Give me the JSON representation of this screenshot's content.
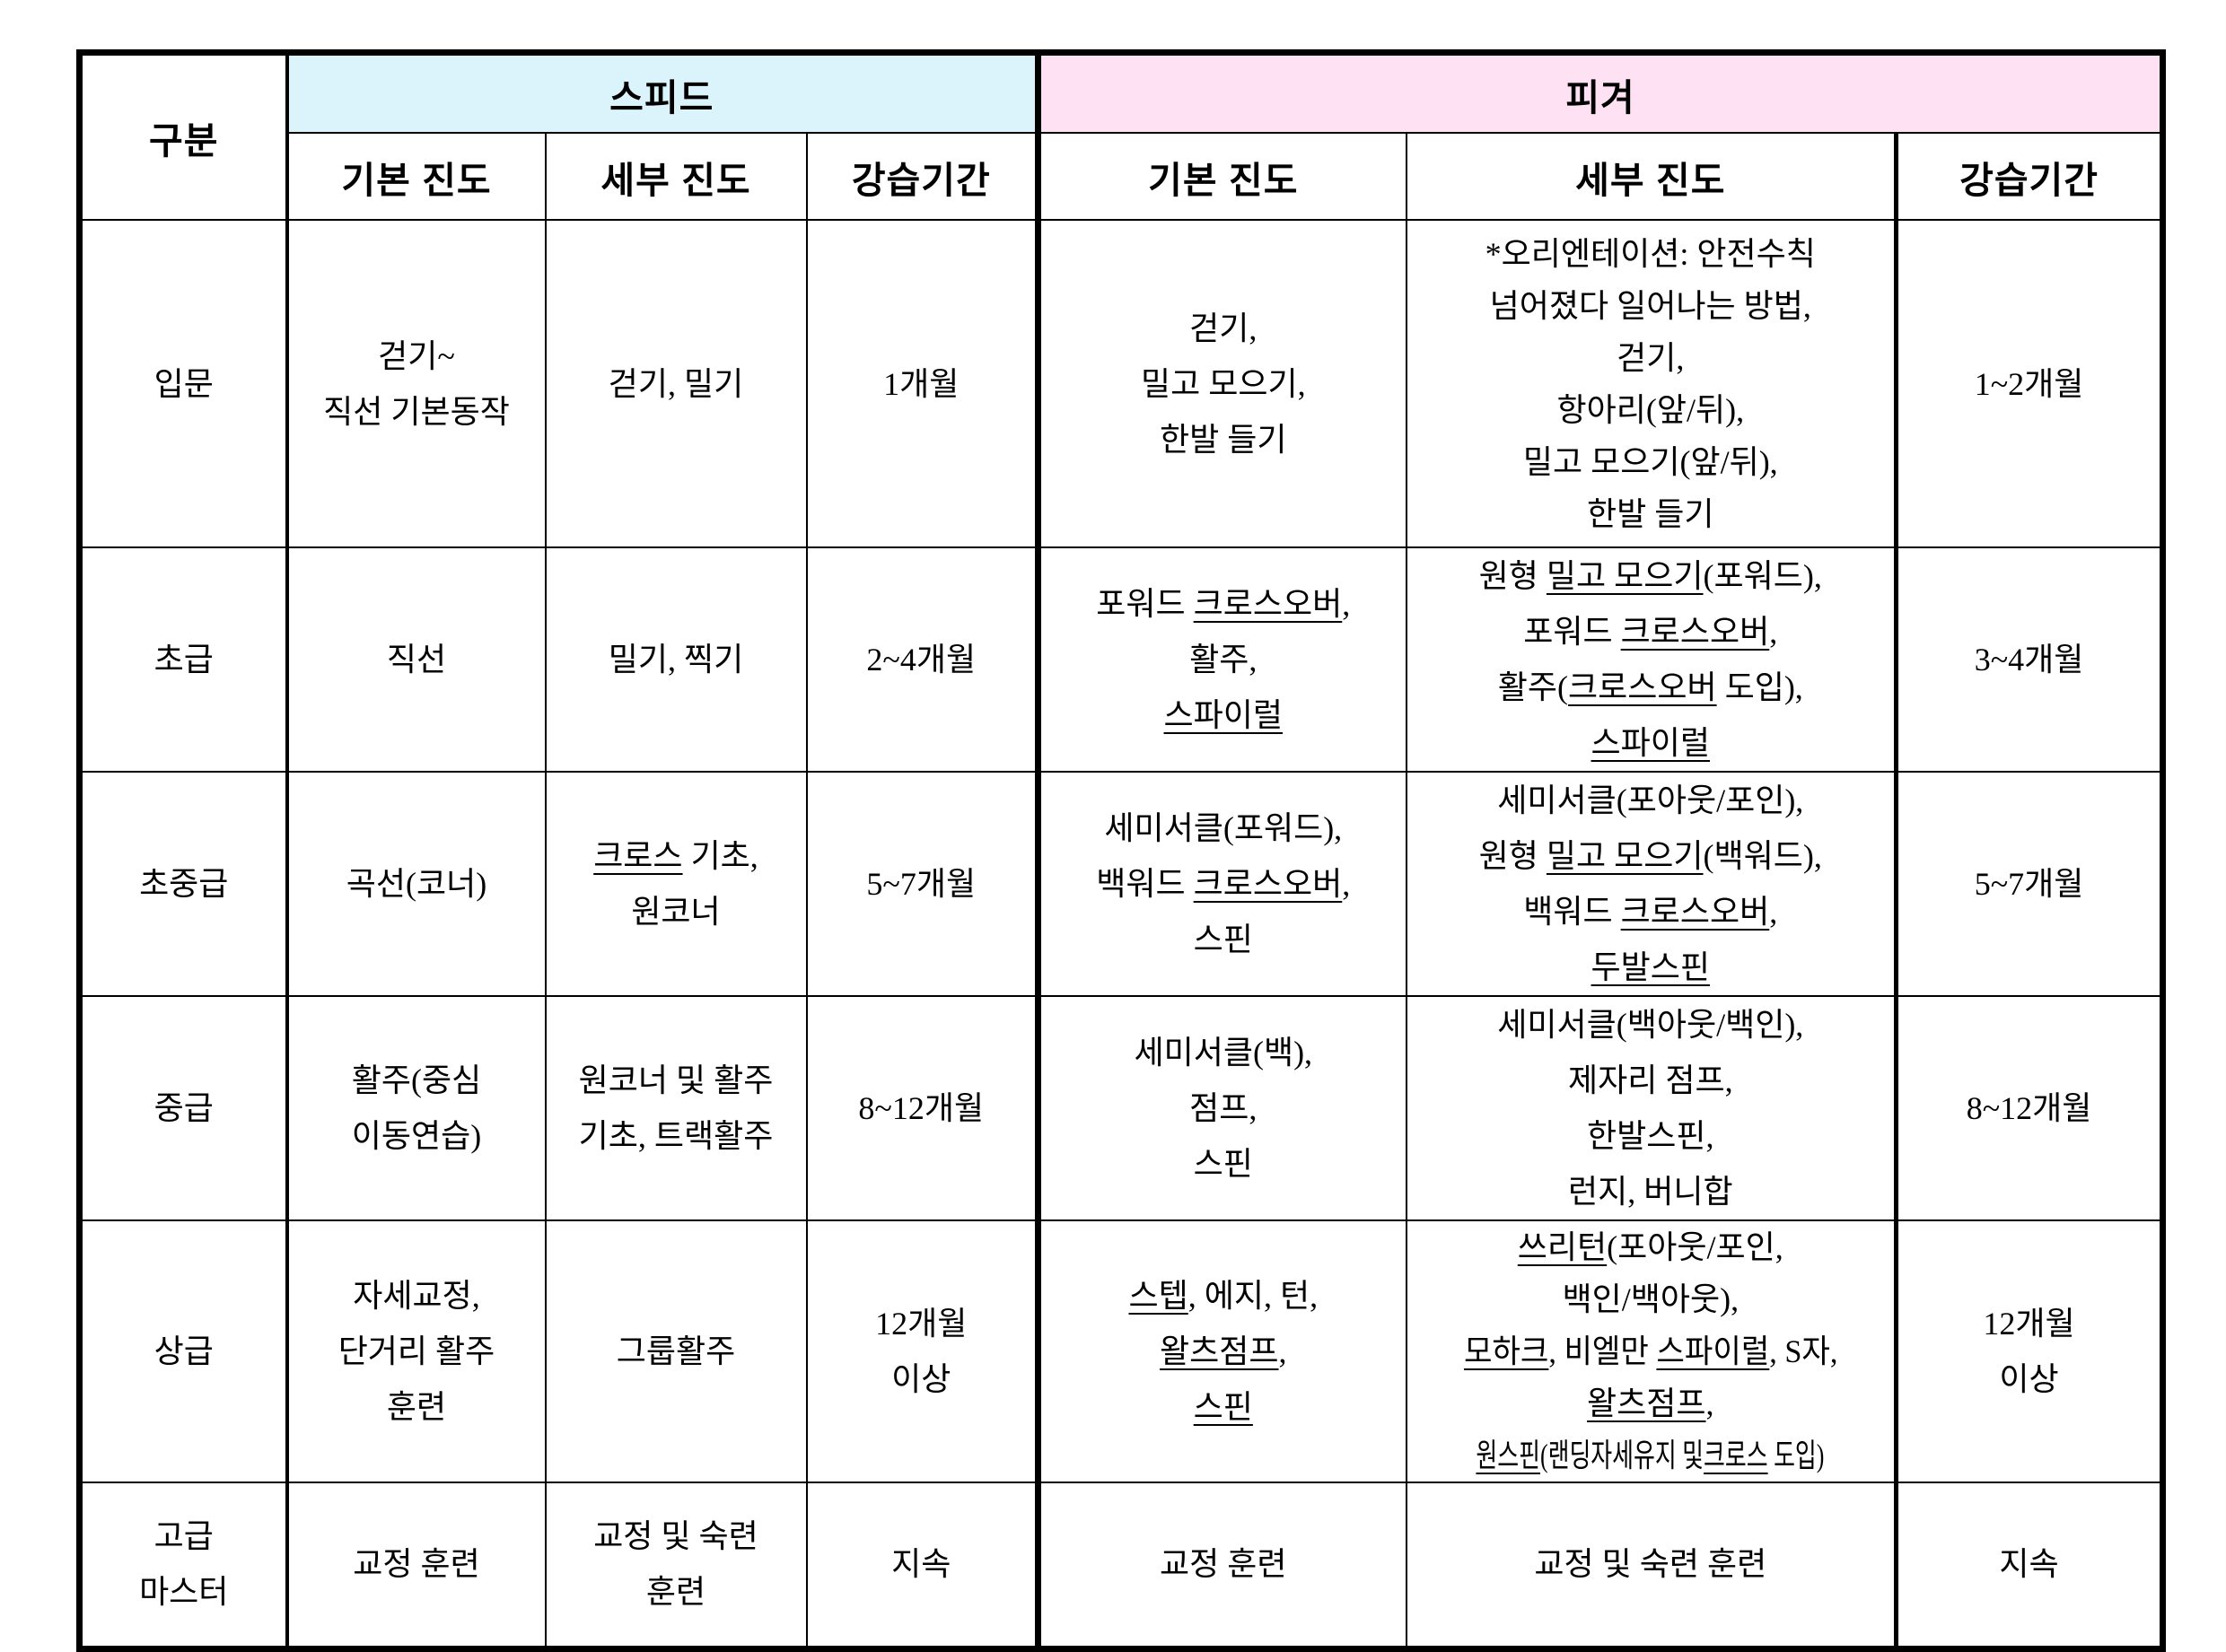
{
  "page": {
    "background": "#ffffff"
  },
  "table": {
    "corner_label": "구분",
    "groups": [
      {
        "id": "speed",
        "label": "스피드",
        "bg": "#dbf3fb",
        "columns": [
          "기본 진도",
          "세부 진도",
          "강습기간"
        ]
      },
      {
        "id": "figure",
        "label": "피겨",
        "bg": "#fee1f2",
        "columns": [
          "기본 진도",
          "세부 진도",
          "강습기간"
        ]
      }
    ],
    "rows": [
      {
        "id": "intro",
        "level": [
          "입문"
        ],
        "speed": {
          "basic": [
            "걷기~",
            "직선 기본동작"
          ],
          "detail": [
            "걷기, 밀기"
          ],
          "period": [
            "1개월"
          ]
        },
        "figure": {
          "basic": [
            "걷기,",
            "밀고 모으기,",
            "한발 들기"
          ],
          "detail": [
            "*오리엔테이션: 안전수칙",
            "넘어졌다 일어나는 방법,",
            "걷기,",
            "항아리(앞/뒤),",
            "밀고 모으기(앞/뒤),",
            "한발 들기"
          ],
          "period": [
            "1~2개월"
          ]
        }
      },
      {
        "id": "beginner",
        "level": [
          "초급"
        ],
        "speed": {
          "basic": [
            "직선"
          ],
          "detail": [
            "밀기, 찍기"
          ],
          "period": [
            "2~4개월"
          ]
        },
        "figure": {
          "basic": [
            {
              "segs": [
                {
                  "t": "포워드 "
                },
                {
                  "t": "크로스오버",
                  "u": true
                },
                {
                  "t": ","
                }
              ]
            },
            "활주,",
            {
              "segs": [
                {
                  "t": "스파이럴",
                  "u": true
                }
              ]
            }
          ],
          "detail": [
            {
              "segs": [
                {
                  "t": "원형 "
                },
                {
                  "t": "밀고 모으기",
                  "u": true
                },
                {
                  "t": "(포워드),"
                }
              ]
            },
            {
              "segs": [
                {
                  "t": "포워드 "
                },
                {
                  "t": "크로스오버",
                  "u": true
                },
                {
                  "t": ","
                }
              ]
            },
            {
              "segs": [
                {
                  "t": "활주("
                },
                {
                  "t": "크로스오버",
                  "u": true
                },
                {
                  "t": " 도입),"
                }
              ]
            },
            {
              "segs": [
                {
                  "t": "스파이럴",
                  "u": true
                }
              ]
            }
          ],
          "period": [
            "3~4개월"
          ]
        }
      },
      {
        "id": "low-intermediate",
        "level": [
          "초중급"
        ],
        "speed": {
          "basic": [
            "곡선(코너)"
          ],
          "detail": [
            {
              "segs": [
                {
                  "t": "크로스",
                  "u": true
                },
                {
                  "t": " 기초,"
                }
              ]
            },
            "원코너"
          ],
          "period": [
            "5~7개월"
          ]
        },
        "figure": {
          "basic": [
            "세미서클(포워드),",
            {
              "segs": [
                {
                  "t": "백워드 "
                },
                {
                  "t": "크로스오버",
                  "u": true
                },
                {
                  "t": ","
                }
              ]
            },
            "스핀"
          ],
          "detail": [
            "세미서클(포아웃/포인),",
            {
              "segs": [
                {
                  "t": "원형 "
                },
                {
                  "t": "밀고 모으기",
                  "u": true
                },
                {
                  "t": "(백워드),"
                }
              ]
            },
            {
              "segs": [
                {
                  "t": "백워드 "
                },
                {
                  "t": "크로스오버",
                  "u": true
                },
                {
                  "t": ","
                }
              ]
            },
            {
              "segs": [
                {
                  "t": "두발스핀",
                  "u": true
                }
              ]
            }
          ],
          "period": [
            "5~7개월"
          ]
        }
      },
      {
        "id": "intermediate",
        "level": [
          "중급"
        ],
        "speed": {
          "basic": [
            "활주(중심",
            "이동연습)"
          ],
          "detail": [
            "원코너 및 활주",
            "기초, 트랙활주"
          ],
          "period": [
            "8~12개월"
          ]
        },
        "figure": {
          "basic": [
            "세미서클(백),",
            "점프,",
            "스핀"
          ],
          "detail": [
            "세미서클(백아웃/백인),",
            "제자리 점프,",
            "한발스핀,",
            "런지, 버니합"
          ],
          "period": [
            "8~12개월"
          ]
        }
      },
      {
        "id": "advanced",
        "level": [
          "상급"
        ],
        "speed": {
          "basic": [
            "자세교정,",
            "단거리 활주",
            "훈련"
          ],
          "detail": [
            "그룹활주"
          ],
          "period": [
            "12개월",
            "이상"
          ]
        },
        "figure": {
          "basic": [
            {
              "segs": [
                {
                  "t": "스텝",
                  "u": true
                },
                {
                  "t": ", 에지, 턴,"
                }
              ]
            },
            {
              "segs": [
                {
                  "t": "왈츠점프",
                  "u": true
                },
                {
                  "t": ","
                }
              ]
            },
            {
              "segs": [
                {
                  "t": "스핀",
                  "u": true
                }
              ]
            }
          ],
          "detail": [
            {
              "segs": [
                {
                  "t": "쓰리턴",
                  "u": true
                },
                {
                  "t": "(포아웃/포인,"
                }
              ]
            },
            "백인/백아웃),",
            {
              "sx": 0.95,
              "segs": [
                {
                  "t": "모하크",
                  "u": true
                },
                {
                  "t": ", 비엘만 "
                },
                {
                  "t": "스파이럴",
                  "u": true
                },
                {
                  "t": ", S자,"
                }
              ]
            },
            {
              "segs": [
                {
                  "t": "왈츠점프",
                  "u": true
                },
                {
                  "t": ","
                }
              ]
            },
            {
              "sx": 0.72,
              "segs": [
                {
                  "t": "원스핀",
                  "u": true
                },
                {
                  "t": "(랜딩자세유지 및"
                },
                {
                  "t": "크로스",
                  "u": true
                },
                {
                  "t": " 도입)"
                }
              ]
            }
          ],
          "period": [
            "12개월",
            "이상"
          ]
        }
      },
      {
        "id": "master",
        "level": [
          "고급",
          "마스터"
        ],
        "speed": {
          "basic": [
            "교정 훈련"
          ],
          "detail": [
            "교정 및 숙련",
            "훈련"
          ],
          "period": [
            "지속"
          ]
        },
        "figure": {
          "basic": [
            "교정 훈련"
          ],
          "detail": [
            "교정 및 숙련 훈련"
          ],
          "period": [
            "지속"
          ]
        }
      }
    ]
  }
}
